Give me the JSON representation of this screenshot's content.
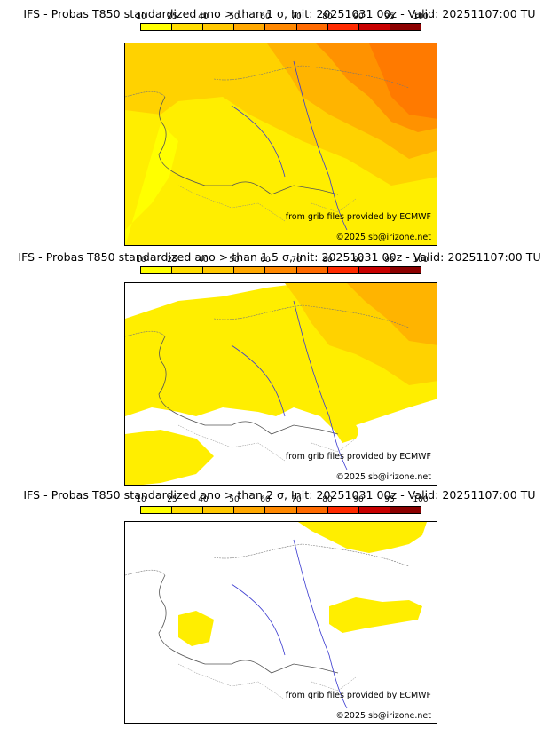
{
  "colorbar": {
    "ticks": [
      "10",
      "25",
      "40",
      "50",
      "60",
      "70",
      "80",
      "90",
      "95",
      "100"
    ],
    "colors": [
      "#ffff00",
      "#ffdd00",
      "#ffc800",
      "#ffa800",
      "#ff8800",
      "#ff6a00",
      "#ff2a00",
      "#c80000",
      "#8b0000"
    ]
  },
  "panels": [
    {
      "title": "IFS - Probas T850  standardized ano > than 1 σ, Init: 20251031 00z - Valid: 20251107:00 TU",
      "threshold": "1 σ"
    },
    {
      "title": "IFS - Probas T850  standardized ano > than 1.5 σ, Init: 20251031 00z - Valid: 20251107:00 TU",
      "threshold": "1.5 σ"
    },
    {
      "title": "IFS - Probas T850  standardized ano > than 2 σ, Init: 20251031 00z - Valid: 20251107:00 TU",
      "threshold": "2 σ"
    }
  ],
  "credits": {
    "source": "from grib files provided by ECMWF",
    "copyright": "©2025 sb@irizone.net"
  }
}
